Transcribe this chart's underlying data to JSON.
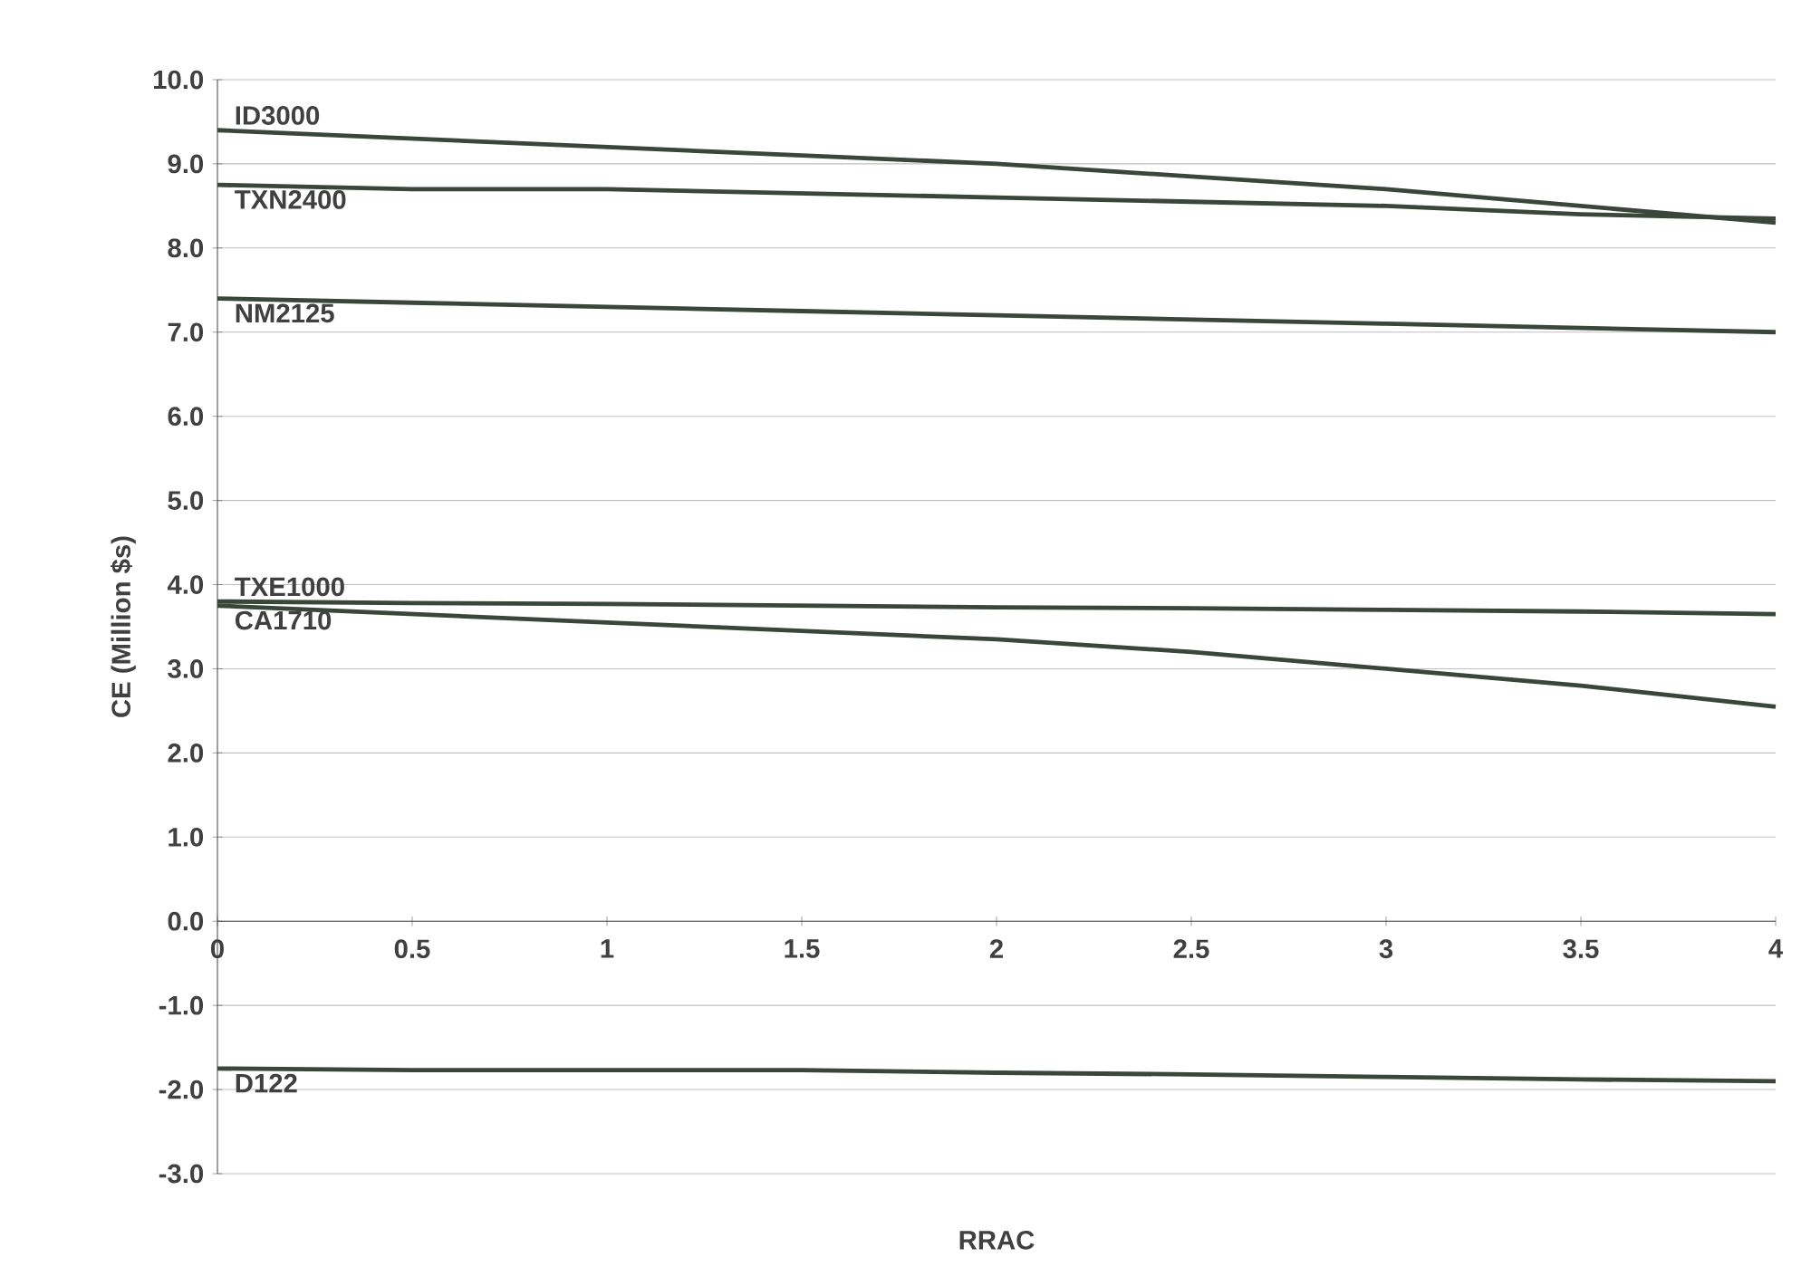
{
  "chart_data": {
    "type": "line",
    "xlabel": "RRAC",
    "ylabel": "CE (Million $s)",
    "x": [
      0,
      0.5,
      1,
      1.5,
      2,
      2.5,
      3,
      3.5,
      4
    ],
    "series": [
      {
        "name": "ID3000",
        "color": "#3a463a",
        "values": [
          9.4,
          9.3,
          9.2,
          9.1,
          9.0,
          8.85,
          8.7,
          8.5,
          8.3
        ]
      },
      {
        "name": "TXN2400",
        "color": "#3a463a",
        "values": [
          8.75,
          8.7,
          8.7,
          8.65,
          8.6,
          8.55,
          8.5,
          8.4,
          8.35
        ]
      },
      {
        "name": "NM2125",
        "color": "#3a463a",
        "values": [
          7.4,
          7.35,
          7.3,
          7.25,
          7.2,
          7.15,
          7.1,
          7.05,
          7.0
        ]
      },
      {
        "name": "TXE1000",
        "color": "#3a463a",
        "values": [
          3.8,
          3.78,
          3.77,
          3.75,
          3.73,
          3.72,
          3.7,
          3.68,
          3.65
        ]
      },
      {
        "name": "CA1710",
        "color": "#3a463a",
        "values": [
          3.75,
          3.65,
          3.55,
          3.45,
          3.35,
          3.2,
          3.0,
          2.8,
          2.55
        ]
      },
      {
        "name": "D122",
        "color": "#3a463a",
        "values": [
          -1.75,
          -1.77,
          -1.77,
          -1.77,
          -1.8,
          -1.82,
          -1.85,
          -1.88,
          -1.9
        ]
      }
    ],
    "xlim": [
      0,
      4
    ],
    "xticks": [
      0,
      0.5,
      1,
      1.5,
      2,
      2.5,
      3,
      3.5,
      4
    ],
    "ylim": [
      -3,
      10
    ],
    "yticks": [
      {
        "value": -3,
        "label": "-3.0"
      },
      {
        "value": -2,
        "label": "-2.0"
      },
      {
        "value": -1,
        "label": "-1.0"
      },
      {
        "value": 0,
        "label": "0.0"
      },
      {
        "value": 1,
        "label": "1.0"
      },
      {
        "value": 2,
        "label": "2.0"
      },
      {
        "value": 3,
        "label": "3.0"
      },
      {
        "value": 4,
        "label": "4.0"
      },
      {
        "value": 5,
        "label": "5.0"
      },
      {
        "value": 6,
        "label": "6.0"
      },
      {
        "value": 7,
        "label": "7.0"
      },
      {
        "value": 8,
        "label": "8.0"
      },
      {
        "value": 9,
        "label": "9.0"
      },
      {
        "value": 10,
        "label": "10.0"
      }
    ],
    "grid": "y",
    "legend": false,
    "marker": "none",
    "line_style": "solid"
  }
}
